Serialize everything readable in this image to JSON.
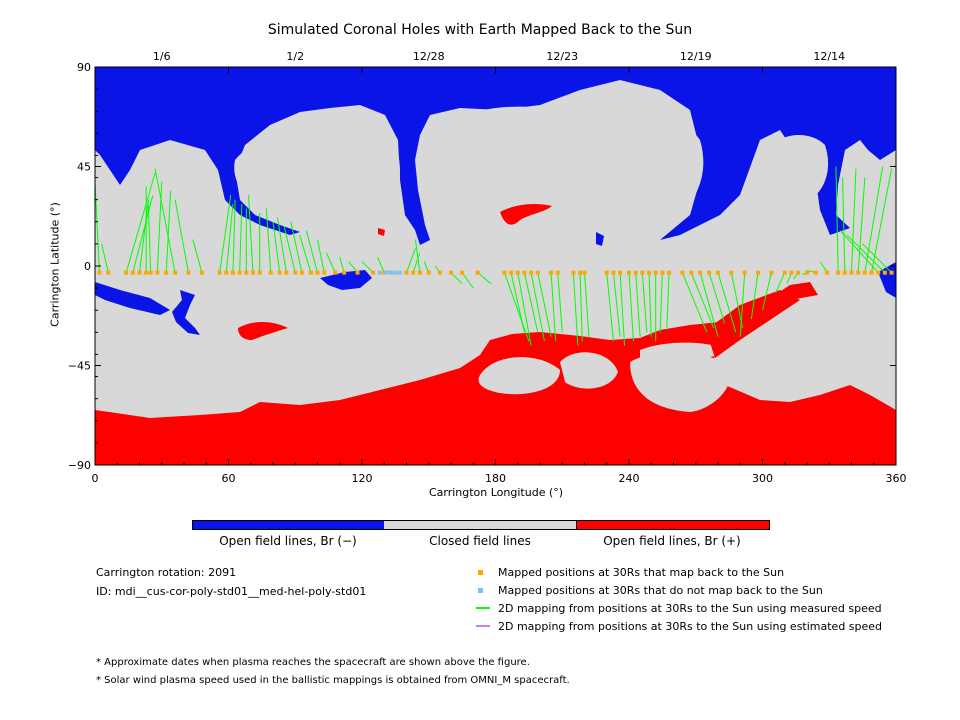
{
  "chart_data": {
    "type": "heatmap",
    "title": "Simulated Coronal Holes with Earth Mapped Back to the Sun",
    "xlabel": "Carrington Longitude (°)",
    "ylabel": "Carrington Latitude (°)",
    "xlim": [
      0,
      360
    ],
    "ylim": [
      -90,
      90
    ],
    "x_ticks": [
      "0",
      "60",
      "120",
      "180",
      "240",
      "300",
      "360"
    ],
    "y_ticks": [
      "90",
      "45",
      "0",
      "-45",
      "-90"
    ],
    "top_date_ticks": [
      {
        "label": "1/6",
        "lon": 30
      },
      {
        "label": "1/2",
        "lon": 90
      },
      {
        "label": "12/28",
        "lon": 150
      },
      {
        "label": "12/23",
        "lon": 210
      },
      {
        "label": "12/19",
        "lon": 270
      },
      {
        "label": "12/14",
        "lon": 330
      }
    ],
    "colors": {
      "open_negative": "#0a14e6",
      "closed": "#d8d8d8",
      "open_positive": "#ff0000",
      "mapped": "#ffa500",
      "not_mapped": "#7ec0ee",
      "measured": "#00ff00",
      "estimated": "#bf7fff"
    },
    "mapped_points": [
      {
        "lon": 2,
        "tlon": 0,
        "tlat": 38
      },
      {
        "lon": 6,
        "tlon": 3,
        "tlat": 10
      },
      {
        "lon": 14,
        "tlon": 27,
        "tlat": 42
      },
      {
        "lon": 17,
        "tlon": 26,
        "tlat": 32
      },
      {
        "lon": 20,
        "tlon": 24,
        "tlat": 30
      },
      {
        "lon": 23,
        "tlon": 23,
        "tlat": 36
      },
      {
        "lon": 25,
        "tlon": 24,
        "tlat": 28
      },
      {
        "lon": 28,
        "tlon": 30,
        "tlat": 38
      },
      {
        "lon": 32,
        "tlon": 34,
        "tlat": 34
      },
      {
        "lon": 36,
        "tlon": 27,
        "tlat": 44
      },
      {
        "lon": 42,
        "tlon": 36,
        "tlat": 30
      },
      {
        "lon": 48,
        "tlon": 44,
        "tlat": 12
      },
      {
        "lon": 56,
        "tlon": 61,
        "tlat": 32
      },
      {
        "lon": 59,
        "tlon": 62,
        "tlat": 28
      },
      {
        "lon": 62,
        "tlon": 63,
        "tlat": 30
      },
      {
        "lon": 65,
        "tlon": 66,
        "tlat": 28
      },
      {
        "lon": 68,
        "tlon": 68,
        "tlat": 26
      },
      {
        "lon": 71,
        "tlon": 69,
        "tlat": 32
      },
      {
        "lon": 74,
        "tlon": 74,
        "tlat": 24
      },
      {
        "lon": 79,
        "tlon": 77,
        "tlat": 26
      },
      {
        "lon": 83,
        "tlon": 80,
        "tlat": 20
      },
      {
        "lon": 86,
        "tlon": 82,
        "tlat": 22
      },
      {
        "lon": 90,
        "tlon": 85,
        "tlat": 18
      },
      {
        "lon": 93,
        "tlon": 88,
        "tlat": 20
      },
      {
        "lon": 97,
        "tlon": 92,
        "tlat": 14
      },
      {
        "lon": 100,
        "tlon": 95,
        "tlat": 16
      },
      {
        "lon": 103,
        "tlon": 100,
        "tlat": 12
      },
      {
        "lon": 108,
        "tlon": 104,
        "tlat": 6
      },
      {
        "lon": 112,
        "tlon": 110,
        "tlat": 4
      },
      {
        "lon": 118,
        "tlon": 114,
        "tlat": 2
      },
      {
        "lon": 125,
        "tlon": 120,
        "tlat": 2
      },
      {
        "lon": 130,
        "tlon": 127,
        "tlat": 4
      },
      {
        "lon": 140,
        "tlon": 144,
        "tlat": 8
      },
      {
        "lon": 143,
        "tlon": 146,
        "tlat": 6
      },
      {
        "lon": 146,
        "tlon": 144,
        "tlat": 12
      },
      {
        "lon": 150,
        "tlon": 148,
        "tlat": 2
      },
      {
        "lon": 155,
        "tlon": 153,
        "tlat": 0
      },
      {
        "lon": 160,
        "tlon": 165,
        "tlat": -8
      },
      {
        "lon": 165,
        "tlon": 170,
        "tlat": -10
      },
      {
        "lon": 172,
        "tlon": 178,
        "tlat": -8
      },
      {
        "lon": 184,
        "tlon": 195,
        "tlat": -34
      },
      {
        "lon": 187,
        "tlon": 193,
        "tlat": -30
      },
      {
        "lon": 190,
        "tlon": 196,
        "tlat": -36
      },
      {
        "lon": 193,
        "tlon": 199,
        "tlat": -30
      },
      {
        "lon": 196,
        "tlon": 202,
        "tlat": -34
      },
      {
        "lon": 199,
        "tlon": 205,
        "tlat": -32
      },
      {
        "lon": 205,
        "tlon": 207,
        "tlat": -34
      },
      {
        "lon": 208,
        "tlon": 210,
        "tlat": -30
      },
      {
        "lon": 215,
        "tlon": 217,
        "tlat": -36
      },
      {
        "lon": 218,
        "tlon": 219,
        "tlat": -34
      },
      {
        "lon": 220,
        "tlon": 222,
        "tlat": -32
      },
      {
        "lon": 230,
        "tlon": 233,
        "tlat": -34
      },
      {
        "lon": 233,
        "tlon": 236,
        "tlat": -32
      },
      {
        "lon": 236,
        "tlon": 238,
        "tlat": -36
      },
      {
        "lon": 240,
        "tlon": 242,
        "tlat": -34
      },
      {
        "lon": 243,
        "tlon": 245,
        "tlat": -32
      },
      {
        "lon": 246,
        "tlon": 248,
        "tlat": -30
      },
      {
        "lon": 249,
        "tlon": 250,
        "tlat": -32
      },
      {
        "lon": 252,
        "tlon": 252,
        "tlat": -34
      },
      {
        "lon": 255,
        "tlon": 254,
        "tlat": -30
      },
      {
        "lon": 258,
        "tlon": 257,
        "tlat": -28
      },
      {
        "lon": 264,
        "tlon": 275,
        "tlat": -30
      },
      {
        "lon": 268,
        "tlon": 278,
        "tlat": -28
      },
      {
        "lon": 272,
        "tlon": 280,
        "tlat": -32
      },
      {
        "lon": 276,
        "tlon": 283,
        "tlat": -26
      },
      {
        "lon": 280,
        "tlon": 288,
        "tlat": -30
      },
      {
        "lon": 286,
        "tlon": 291,
        "tlat": -28
      },
      {
        "lon": 292,
        "tlon": 290,
        "tlat": -32
      },
      {
        "lon": 298,
        "tlon": 295,
        "tlat": -24
      },
      {
        "lon": 304,
        "tlon": 300,
        "tlat": -20
      },
      {
        "lon": 310,
        "tlon": 306,
        "tlat": -12
      },
      {
        "lon": 313,
        "tlon": 311,
        "tlat": -8
      },
      {
        "lon": 316,
        "tlon": 314,
        "tlat": -6
      },
      {
        "lon": 320,
        "tlon": 318,
        "tlat": -4
      },
      {
        "lon": 324,
        "tlon": 320,
        "tlat": -2
      },
      {
        "lon": 329,
        "tlon": 326,
        "tlat": 2
      },
      {
        "lon": 334,
        "tlon": 333,
        "tlat": 45
      },
      {
        "lon": 337,
        "tlon": 336,
        "tlat": 40
      },
      {
        "lon": 340,
        "tlon": 342,
        "tlat": 44
      },
      {
        "lon": 343,
        "tlon": 346,
        "tlat": 40
      },
      {
        "lon": 346,
        "tlon": 354,
        "tlat": 45
      },
      {
        "lon": 349,
        "tlon": 358,
        "tlat": 44
      },
      {
        "lon": 352,
        "tlon": 335,
        "tlat": 16
      },
      {
        "lon": 355,
        "tlon": 338,
        "tlat": 14
      },
      {
        "lon": 358,
        "tlon": 345,
        "tlat": 10
      }
    ],
    "unmapped_points": [
      {
        "lon": 128
      },
      {
        "lon": 131
      },
      {
        "lon": 133
      },
      {
        "lon": 135
      },
      {
        "lon": 137
      }
    ]
  },
  "colorbar": {
    "labels": [
      "Open field lines, Br (−)",
      "Closed field lines",
      "Open field lines, Br (+)"
    ]
  },
  "info": {
    "rotation": "Carrington rotation: 2091",
    "id": "ID: mdi__cus-cor-poly-std01__med-hel-poly-std01"
  },
  "legend": {
    "mapped": "Mapped positions at 30Rs that map back to the Sun",
    "not_mapped": "Mapped positions at 30Rs that do not map back to the Sun",
    "measured": "2D mapping from positions at 30Rs to the Sun using measured speed",
    "estimated": "2D mapping from positions at 30Rs to the Sun using estimated speed"
  },
  "notes": {
    "note1": "* Approximate dates when plasma reaches the spacecraft are shown above the figure.",
    "note2": "* Solar wind plasma speed used in the ballistic mappings is obtained from OMNI_M spacecraft."
  }
}
